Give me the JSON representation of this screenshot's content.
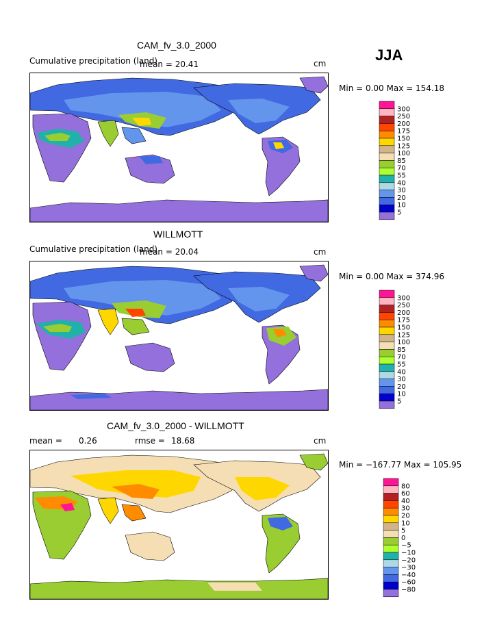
{
  "season": "JJA",
  "panels": [
    {
      "title": "CAM_fv_3.0_2000",
      "subtitle": "Cumulative precipitation (land)",
      "mean_text": "mean =   20.41",
      "units": "cm",
      "minmax": "Min =    0.00 Max = 154.18",
      "levels": [
        "300",
        "250",
        "200",
        "175",
        "150",
        "125",
        "100",
        "85",
        "70",
        "55",
        "40",
        "30",
        "20",
        "10",
        "5"
      ]
    },
    {
      "title": "WILLMOTT",
      "subtitle": "Cumulative precipitation (land)",
      "mean_text": "mean =   20.04",
      "units": "cm",
      "minmax": "Min =    0.00 Max = 374.96",
      "levels": [
        "300",
        "250",
        "200",
        "175",
        "150",
        "125",
        "100",
        "85",
        "70",
        "55",
        "40",
        "30",
        "20",
        "10",
        "5"
      ]
    },
    {
      "title": "CAM_fv_3.0_2000 - WILLMOTT",
      "mean_label": "mean =",
      "mean_value": "0.26",
      "rmse_label": "rmse =",
      "rmse_value": "18.68",
      "units": "cm",
      "minmax": "Min = −167.77 Max = 105.95",
      "levels": [
        "80",
        "60",
        "40",
        "30",
        "20",
        "10",
        "5",
        "0",
        "−5",
        "−10",
        "−20",
        "−30",
        "−40",
        "−60",
        "−80"
      ]
    }
  ],
  "colors": {
    "abs": [
      "#ff1493",
      "#ffb6c1",
      "#b22222",
      "#ff4500",
      "#ff8c00",
      "#ffd700",
      "#d2b48c",
      "#f5deb3",
      "#9acd32",
      "#adff2f",
      "#20b2aa",
      "#add8e6",
      "#6495ed",
      "#4169e1",
      "#0000cd",
      "#9370db"
    ],
    "diff": [
      "#ff1493",
      "#ffb6c1",
      "#b22222",
      "#ff4500",
      "#ff8c00",
      "#ffd700",
      "#d2b48c",
      "#f5deb3",
      "#9acd32",
      "#adff2f",
      "#20b2aa",
      "#add8e6",
      "#6495ed",
      "#4169e1",
      "#0000cd",
      "#9370db"
    ]
  }
}
